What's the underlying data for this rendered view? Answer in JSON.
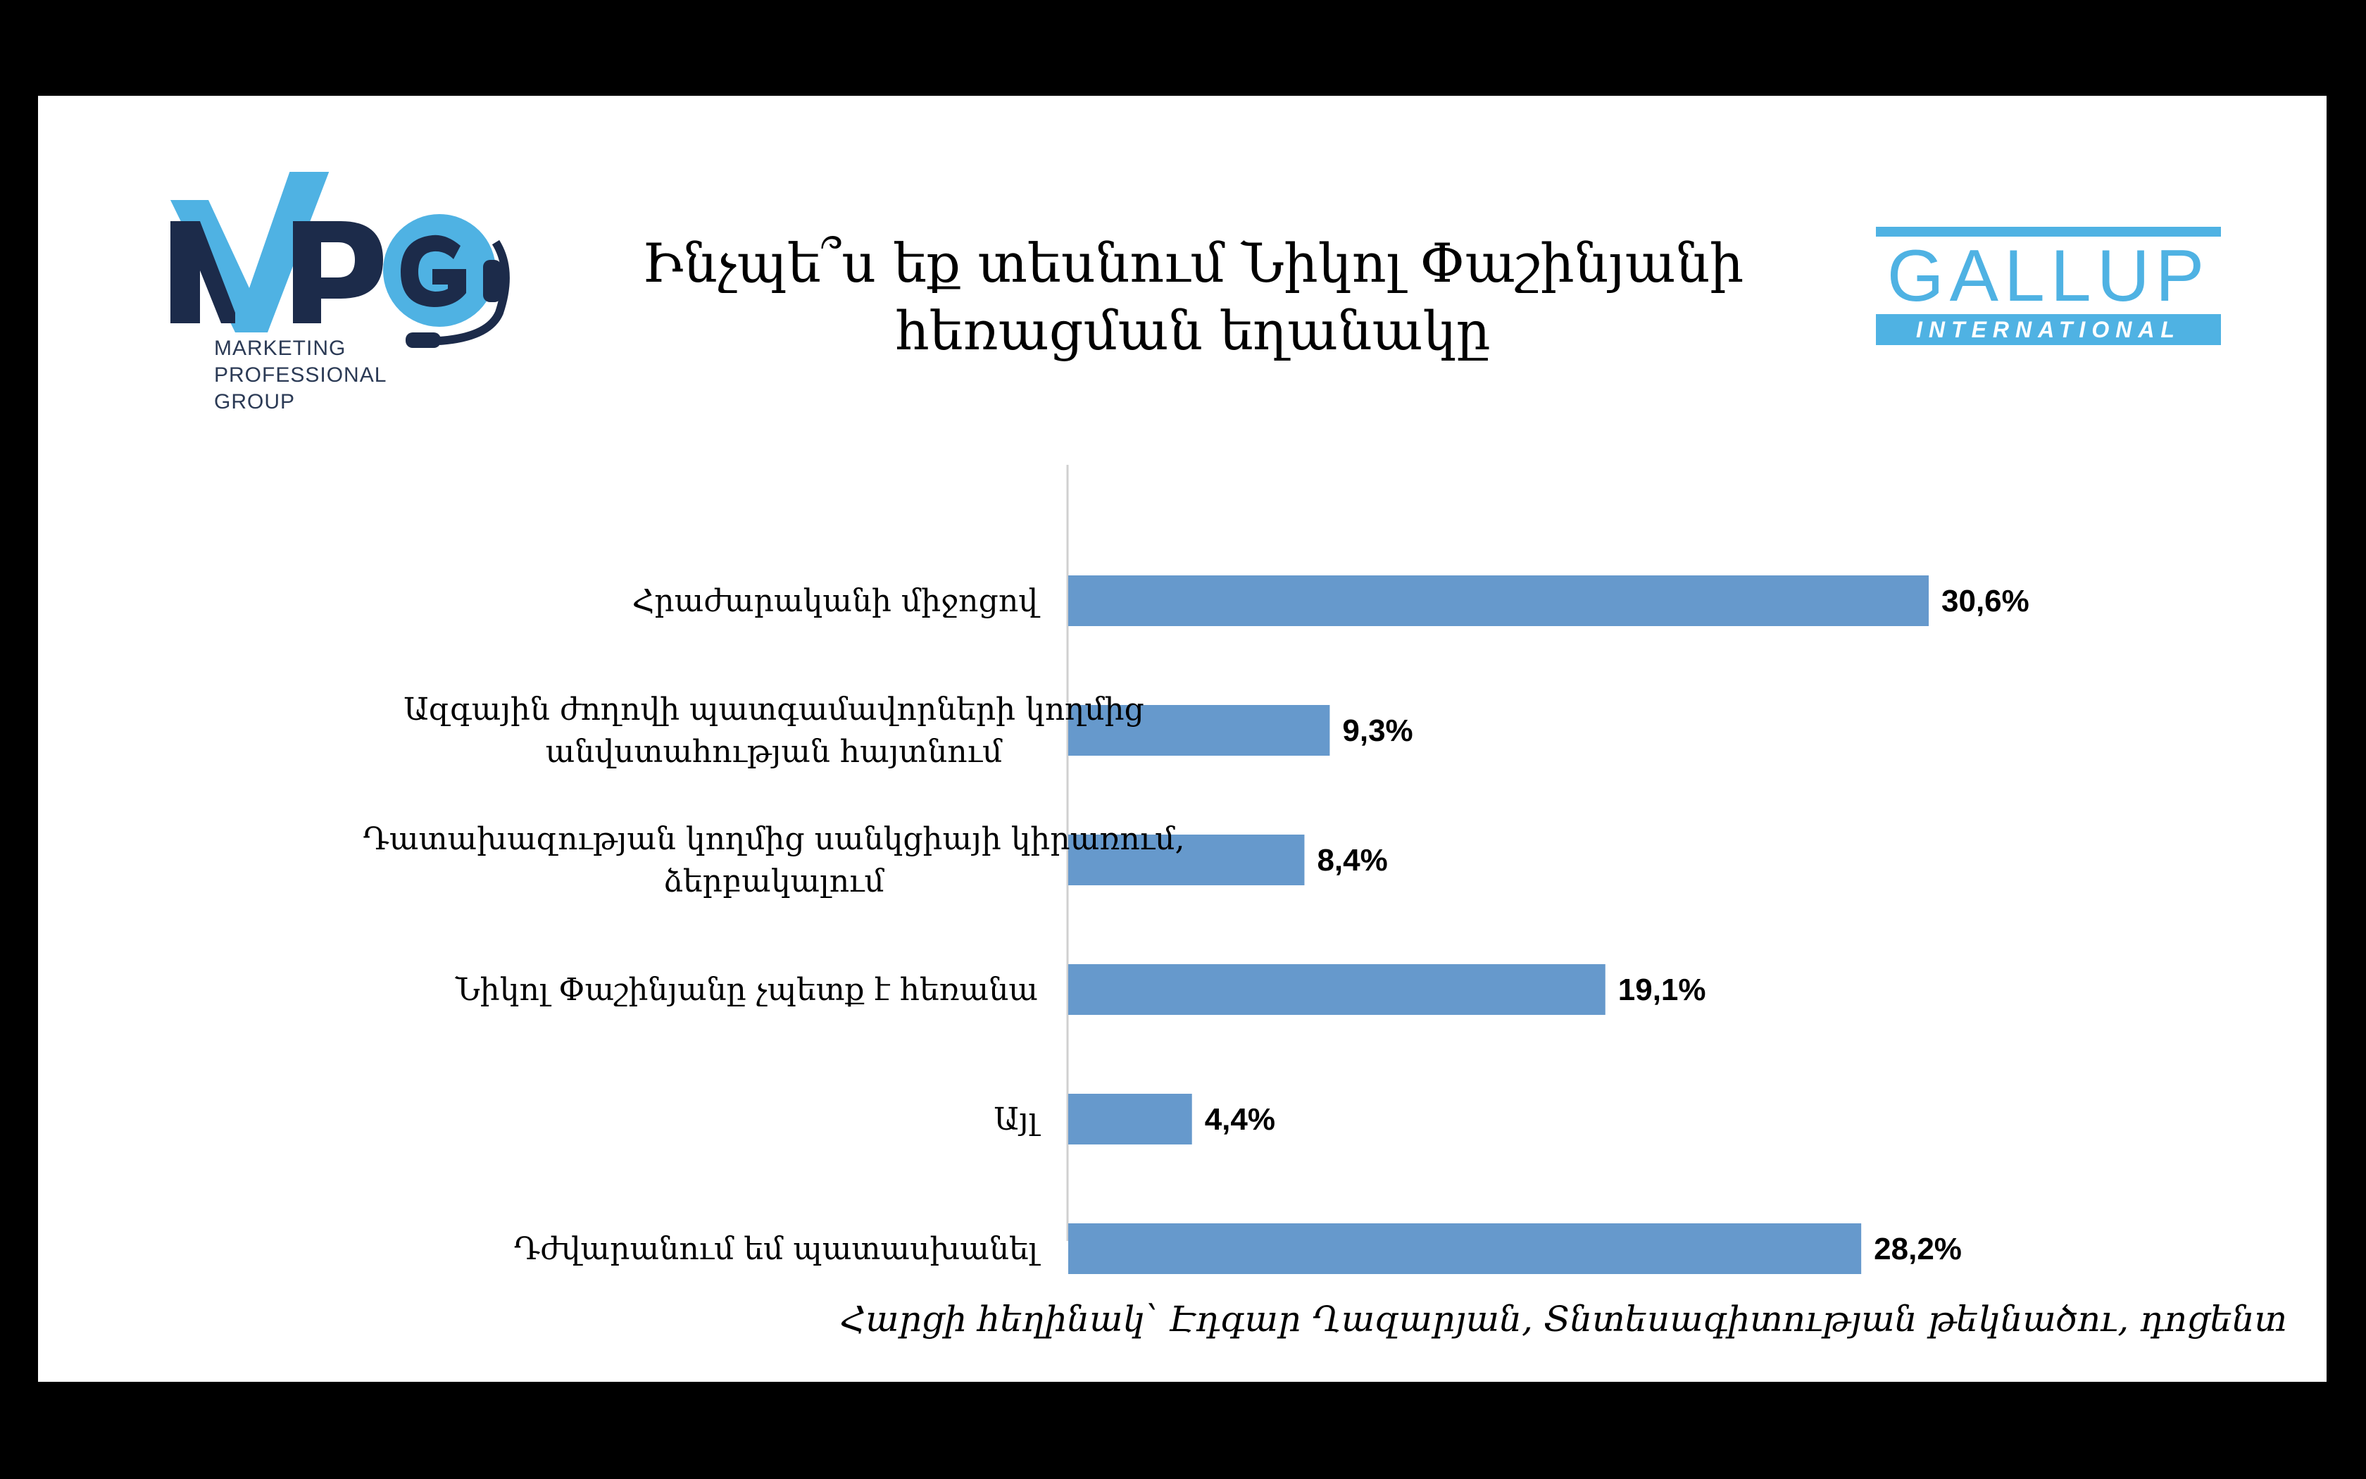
{
  "logos": {
    "mpg_letters": "MPG",
    "mpg_sub": [
      "MARKETING",
      "PROFESSIONAL",
      "GROUP"
    ],
    "gallup_word": "GALLUP",
    "gallup_band": "INTERNATIONAL"
  },
  "colors": {
    "bar": "#6699cc",
    "mpg_dark": "#1c2b4a",
    "mpg_light": "#4fb2e3",
    "gallup": "#4fb2e3"
  },
  "chart_data": {
    "type": "bar",
    "orientation": "horizontal",
    "title": [
      "Ինչպե՞ս եք տեսնում Նիկոլ Փաշինյանի",
      "հեռացման եղանակը"
    ],
    "categories": [
      [
        "Հրաժարականի միջոցով"
      ],
      [
        "Ազգային ժողովի պատգամավորների կողմից",
        "անվստահության հայտնում"
      ],
      [
        "Դատախազության կողմից սանկցիայի կիրառում,",
        "ձերբակալում"
      ],
      [
        "Նիկոլ Փաշինյանը չպետք է հեռանա"
      ],
      [
        "Այլ"
      ],
      [
        "Դժվարանում եմ պատասխանել"
      ]
    ],
    "values": [
      30.6,
      9.3,
      8.4,
      19.1,
      4.4,
      28.2
    ],
    "value_labels": [
      "30,6%",
      "9,3%",
      "8,4%",
      "19,1%",
      "4,4%",
      "28,2%"
    ],
    "xlim": [
      0,
      35
    ],
    "grid": false,
    "legend": "none"
  },
  "footer": "Հարցի հեղինակ՝ Էդգար Ղազարյան, Տնտեսագիտության թեկնածու, դոցենտ"
}
